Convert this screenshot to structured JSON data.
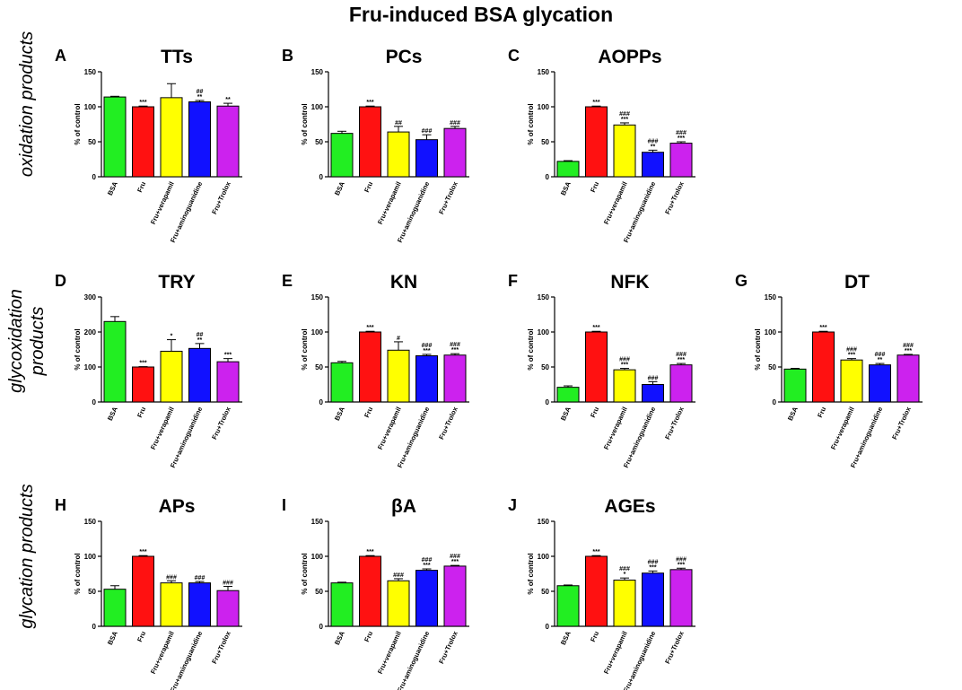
{
  "title": "Fru-induced BSA glycation",
  "row_labels": [
    "oxidation products",
    "glycoxidation products",
    "glycation products"
  ],
  "colors": {
    "BSA": "#22ee22",
    "Fru": "#ff1111",
    "Fru+verapamil": "#ffff00",
    "Fru+aminoguanidine": "#1111ff",
    "Fru+Trolox": "#cc22ee"
  },
  "chart_data": [
    {
      "letter": "A",
      "title": "TTs",
      "type": "bar",
      "ylabel": "% of control",
      "ylim": [
        0,
        150
      ],
      "yticks": [
        0,
        50,
        100,
        150
      ],
      "categories": [
        "BSA",
        "Fru",
        "Fru+verapamil",
        "Fru+aminoguanidine",
        "Fru+Trolox"
      ],
      "values": [
        114,
        100,
        113,
        107,
        101
      ],
      "errors": [
        1,
        1,
        20,
        2,
        4
      ],
      "annotations": [
        "",
        "***",
        "",
        "##\n**",
        "**"
      ]
    },
    {
      "letter": "B",
      "title": "PCs",
      "type": "bar",
      "ylabel": "% of control",
      "ylim": [
        0,
        150
      ],
      "yticks": [
        0,
        50,
        100,
        150
      ],
      "categories": [
        "BSA",
        "Fru",
        "Fru+verapamil",
        "Fru+aminoguanidine",
        "Fru+Trolox"
      ],
      "values": [
        62,
        100,
        64,
        53,
        69
      ],
      "errors": [
        3,
        1,
        8,
        7,
        3
      ],
      "annotations": [
        "",
        "***",
        "##",
        "###",
        "###"
      ]
    },
    {
      "letter": "C",
      "title": "AOPPs",
      "type": "bar",
      "ylabel": "% of control",
      "ylim": [
        0,
        150
      ],
      "yticks": [
        0,
        50,
        100,
        150
      ],
      "categories": [
        "BSA",
        "Fru",
        "Fru+verapamil",
        "Fru+aminoguanidine",
        "Fru+Trolox"
      ],
      "values": [
        22,
        100,
        74,
        35,
        48
      ],
      "errors": [
        1,
        1,
        3,
        3,
        2
      ],
      "annotations": [
        "",
        "***",
        "###\n***",
        "###\n**",
        "###\n***"
      ]
    },
    {
      "letter": "D",
      "title": "TRY",
      "type": "bar",
      "ylabel": "% of control",
      "ylim": [
        0,
        300
      ],
      "yticks": [
        0,
        100,
        200,
        300
      ],
      "categories": [
        "BSA",
        "Fru",
        "Fru+verapamil",
        "Fru+aminoguanidine",
        "Fru+Trolox"
      ],
      "values": [
        230,
        100,
        145,
        153,
        115
      ],
      "errors": [
        14,
        1,
        33,
        14,
        9
      ],
      "annotations": [
        "",
        "***",
        "*",
        "##\n**",
        "***"
      ]
    },
    {
      "letter": "E",
      "title": "KN",
      "type": "bar",
      "ylabel": "% of control",
      "ylim": [
        0,
        150
      ],
      "yticks": [
        0,
        50,
        100,
        150
      ],
      "categories": [
        "BSA",
        "Fru",
        "Fru+verapamil",
        "Fru+aminoguanidine",
        "Fru+Trolox"
      ],
      "values": [
        56,
        100,
        74,
        66,
        67
      ],
      "errors": [
        2,
        1,
        12,
        2,
        2
      ],
      "annotations": [
        "",
        "***",
        "#",
        "###\n***",
        "###\n***"
      ]
    },
    {
      "letter": "F",
      "title": "NFK",
      "type": "bar",
      "ylabel": "% of control",
      "ylim": [
        0,
        150
      ],
      "yticks": [
        0,
        50,
        100,
        150
      ],
      "categories": [
        "BSA",
        "Fru",
        "Fru+verapamil",
        "Fru+aminoguanidine",
        "Fru+Trolox"
      ],
      "values": [
        21,
        100,
        46,
        25,
        53
      ],
      "errors": [
        2,
        1,
        2,
        4,
        2
      ],
      "annotations": [
        "",
        "***",
        "###\n***",
        "###",
        "###\n***"
      ]
    },
    {
      "letter": "G",
      "title": "DT",
      "type": "bar",
      "ylabel": "% of control",
      "ylim": [
        0,
        150
      ],
      "yticks": [
        0,
        50,
        100,
        150
      ],
      "categories": [
        "BSA",
        "Fru",
        "Fru+verapamil",
        "Fru+aminoguanidine",
        "Fru+Trolox"
      ],
      "values": [
        47,
        100,
        60,
        53,
        67
      ],
      "errors": [
        1,
        1,
        2,
        2,
        1
      ],
      "annotations": [
        "",
        "***",
        "###\n***",
        "###\n**",
        "###\n***"
      ]
    },
    {
      "letter": "H",
      "title": "APs",
      "type": "bar",
      "ylabel": "% of control",
      "ylim": [
        0,
        150
      ],
      "yticks": [
        0,
        50,
        100,
        150
      ],
      "categories": [
        "BSA",
        "Fru",
        "Fru+verapamil",
        "Fru+aminoguanidine",
        "Fru+Trolox"
      ],
      "values": [
        53,
        100,
        62,
        62,
        51
      ],
      "errors": [
        5,
        1,
        3,
        2,
        6
      ],
      "annotations": [
        "",
        "***",
        "###",
        "###",
        "###"
      ]
    },
    {
      "letter": "I",
      "title": "βA",
      "type": "bar",
      "ylabel": "% of control",
      "ylim": [
        0,
        150
      ],
      "yticks": [
        0,
        50,
        100,
        150
      ],
      "categories": [
        "BSA",
        "Fru",
        "Fru+verapamil",
        "Fru+aminoguanidine",
        "Fru+Trolox"
      ],
      "values": [
        62,
        100,
        65,
        80,
        86
      ],
      "errors": [
        1,
        1,
        3,
        2,
        1
      ],
      "annotations": [
        "",
        "***",
        "###",
        "###\n***",
        "###\n***"
      ]
    },
    {
      "letter": "J",
      "title": "AGEs",
      "type": "bar",
      "ylabel": "% of control",
      "ylim": [
        0,
        150
      ],
      "yticks": [
        0,
        50,
        100,
        150
      ],
      "categories": [
        "BSA",
        "Fru",
        "Fru+verapamil",
        "Fru+aminoguanidine",
        "Fru+Trolox"
      ],
      "values": [
        58,
        100,
        66,
        76,
        81
      ],
      "errors": [
        1,
        1,
        3,
        3,
        2
      ],
      "annotations": [
        "",
        "***",
        "###\n*",
        "###\n***",
        "###\n***"
      ]
    }
  ]
}
